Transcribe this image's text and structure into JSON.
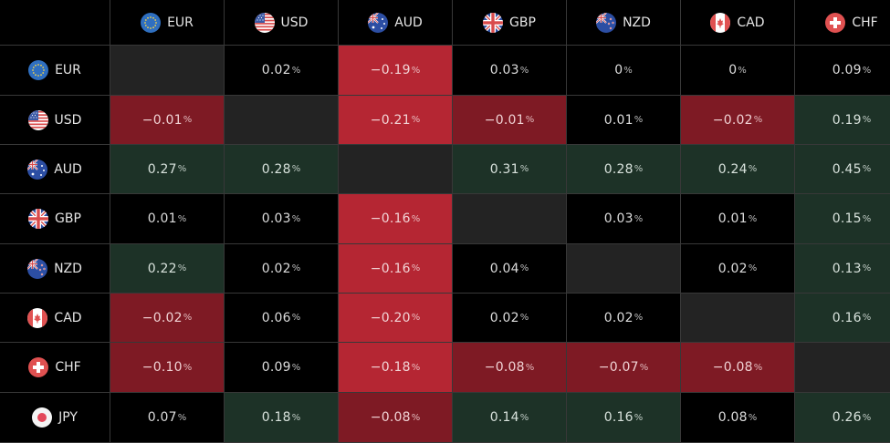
{
  "currencies": [
    {
      "code": "EUR",
      "icon": "eu-flag-icon"
    },
    {
      "code": "USD",
      "icon": "us-flag-icon"
    },
    {
      "code": "AUD",
      "icon": "au-flag-icon"
    },
    {
      "code": "GBP",
      "icon": "uk-flag-icon"
    },
    {
      "code": "NZD",
      "icon": "nz-flag-icon"
    },
    {
      "code": "CAD",
      "icon": "ca-flag-icon"
    },
    {
      "code": "CHF",
      "icon": "ch-flag-icon"
    },
    {
      "code": "JPY",
      "icon": "jp-flag-icon"
    }
  ],
  "columns": [
    "EUR",
    "USD",
    "AUD",
    "GBP",
    "NZD",
    "CAD",
    "CHF"
  ],
  "rows": [
    {
      "code": "EUR",
      "cells": [
        null,
        "0.02",
        "−0.19",
        "0.03",
        "0",
        "0",
        "0.09"
      ]
    },
    {
      "code": "USD",
      "cells": [
        "−0.01",
        null,
        "−0.21",
        "−0.01",
        "0.01",
        "−0.02",
        "0.19"
      ]
    },
    {
      "code": "AUD",
      "cells": [
        "0.27",
        "0.28",
        null,
        "0.31",
        "0.28",
        "0.24",
        "0.45"
      ]
    },
    {
      "code": "GBP",
      "cells": [
        "0.01",
        "0.03",
        "−0.16",
        null,
        "0.03",
        "0.01",
        "0.15"
      ]
    },
    {
      "code": "NZD",
      "cells": [
        "0.22",
        "0.02",
        "−0.16",
        "0.04",
        null,
        "0.02",
        "0.13"
      ]
    },
    {
      "code": "CAD",
      "cells": [
        "−0.02",
        "0.06",
        "−0.20",
        "0.02",
        "0.02",
        null,
        "0.16"
      ]
    },
    {
      "code": "CHF",
      "cells": [
        "−0.10",
        "0.09",
        "−0.18",
        "−0.08",
        "−0.07",
        "−0.08",
        null
      ]
    },
    {
      "code": "JPY",
      "cells": [
        "0.07",
        "0.18",
        "−0.08",
        "0.14",
        "0.16",
        "0.08",
        "0.26"
      ]
    }
  ],
  "cell_styles": [
    [
      "diag",
      "neutral",
      "neg-strong",
      "neutral",
      "neutral",
      "neutral",
      "neutral"
    ],
    [
      "neg-mid",
      "diag",
      "neg-strong",
      "neg-mid",
      "neutral",
      "neg-mid",
      "pos"
    ],
    [
      "pos",
      "pos",
      "diag",
      "pos",
      "pos",
      "pos",
      "pos"
    ],
    [
      "neutral",
      "neutral",
      "neg-strong",
      "diag",
      "neutral",
      "neutral",
      "pos"
    ],
    [
      "pos",
      "neutral",
      "neg-strong",
      "neutral",
      "diag",
      "neutral",
      "pos"
    ],
    [
      "neg-mid",
      "neutral",
      "neg-strong",
      "neutral",
      "neutral",
      "diag",
      "pos"
    ],
    [
      "neg-mid",
      "neutral",
      "neg-strong",
      "neg-mid",
      "neg-mid",
      "neg-mid",
      "diag"
    ],
    [
      "neutral",
      "pos",
      "neg-mid",
      "pos",
      "pos",
      "neutral",
      "pos"
    ]
  ],
  "percent_symbol": "%",
  "colors": {
    "negative_strong": "#b52633",
    "negative": "#7e1a24",
    "positive": "#1d3227",
    "diagonal": "#232323",
    "background": "#000000",
    "grid_line": "#383838"
  }
}
